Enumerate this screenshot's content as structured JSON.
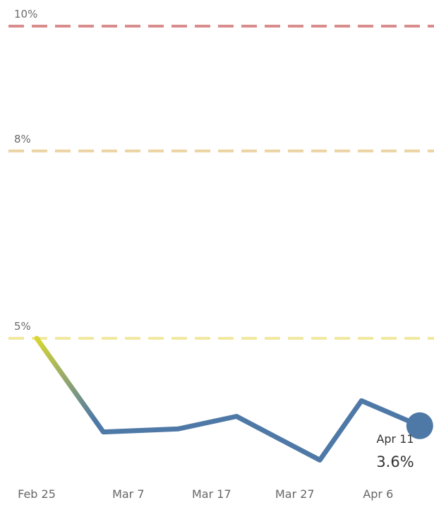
{
  "chart_data": {
    "type": "line",
    "x_labels": [
      "Feb 25",
      "Mar 7",
      "Mar 17",
      "Mar 27",
      "Apr 6"
    ],
    "points": [
      {
        "x": "Feb 25",
        "y": 5.0
      },
      {
        "x": "Mar 4",
        "y": 3.5
      },
      {
        "x": "Mar 13",
        "y": 3.55
      },
      {
        "x": "Mar 20",
        "y": 3.75
      },
      {
        "x": "Mar 30",
        "y": 3.05
      },
      {
        "x": "Apr 4",
        "y": 4.0
      },
      {
        "x": "Apr 11",
        "y": 3.6
      }
    ],
    "reference_lines": [
      {
        "value": 10,
        "label": "10%",
        "color": "#d98c8c"
      },
      {
        "value": 8,
        "label": "8%",
        "color": "#ebd3a2"
      },
      {
        "value": 5,
        "label": "5%",
        "color": "#f1e8a0"
      }
    ],
    "end_label": {
      "date": "Apr 11",
      "value": "3.6%"
    },
    "colors": {
      "line": "#4e79a7",
      "gradient_start": "#e0dc2b"
    },
    "ylim": [
      2.3,
      10.3
    ],
    "grid": false
  }
}
